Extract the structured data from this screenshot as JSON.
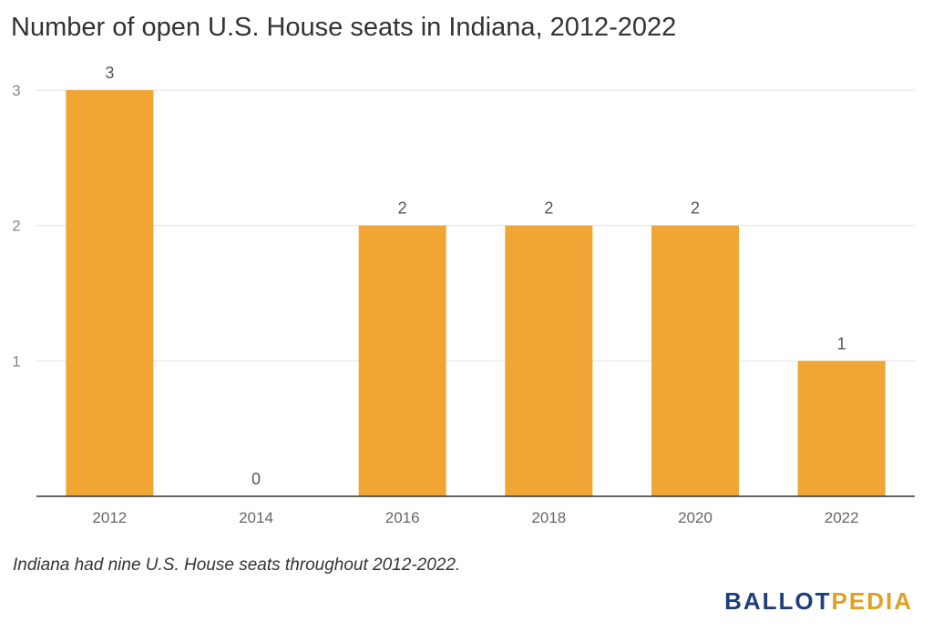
{
  "chart_data": {
    "type": "bar",
    "title": "Number of open U.S. House seats in Indiana, 2012-2022",
    "categories": [
      "2012",
      "2014",
      "2016",
      "2018",
      "2020",
      "2022"
    ],
    "values": [
      3,
      0,
      2,
      2,
      2,
      1
    ],
    "ylim": [
      0,
      3
    ],
    "yticks": [
      1,
      2,
      3
    ],
    "grid": true,
    "bar_color": "#f0a535",
    "data_labels": true
  },
  "note": "Indiana had nine U.S. House seats throughout 2012-2022.",
  "logo": {
    "part1": "BALLOT",
    "part2": "PEDIA"
  }
}
